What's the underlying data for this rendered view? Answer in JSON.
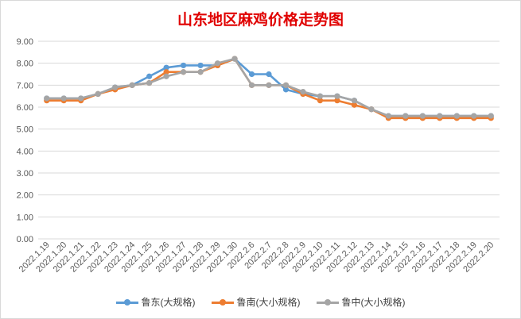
{
  "chart_data": {
    "type": "line",
    "title": "山东地区麻鸡价格走势图",
    "xlabel": "",
    "ylabel": "",
    "ylim": [
      0,
      9
    ],
    "yticks": [
      "0.00",
      "1.00",
      "2.00",
      "3.00",
      "4.00",
      "5.00",
      "6.00",
      "7.00",
      "8.00",
      "9.00"
    ],
    "grid": true,
    "legend_position": "bottom",
    "categories": [
      "2022.1.19",
      "2022.1.20",
      "2022.1.21",
      "2022.1.22",
      "2022.1.23",
      "2022.1.24",
      "2022.1.25",
      "2022.1.26",
      "2022.1.27",
      "2022.1.28",
      "2022.1.29",
      "2022.1.30",
      "2022.2.6",
      "2022.2.7",
      "2022.2.8",
      "2022.2.9",
      "2022.2.10",
      "2022.2.11",
      "2022.2.12",
      "2022.2.13",
      "2022.2.14",
      "2022.2.15",
      "2022.2.16",
      "2022.2.17",
      "2022.2.18",
      "2022.2.19",
      "2022.2.20"
    ],
    "series": [
      {
        "name": "鲁东(大规格)",
        "color": "#5b9bd5",
        "values": [
          6.4,
          6.4,
          6.4,
          6.6,
          6.9,
          7.0,
          7.4,
          7.8,
          7.9,
          7.9,
          7.9,
          8.2,
          7.5,
          7.5,
          6.8,
          6.6,
          6.5,
          6.5,
          6.3,
          5.9,
          5.6,
          5.6,
          5.6,
          5.6,
          5.6,
          5.6,
          5.6
        ]
      },
      {
        "name": "鲁南(大小规格)",
        "color": "#ed7d31",
        "values": [
          6.3,
          6.3,
          6.3,
          6.6,
          6.8,
          7.0,
          7.1,
          7.6,
          7.6,
          7.6,
          7.9,
          8.2,
          7.0,
          7.0,
          7.0,
          6.6,
          6.3,
          6.3,
          6.1,
          5.9,
          5.5,
          5.5,
          5.5,
          5.5,
          5.5,
          5.5,
          5.5
        ]
      },
      {
        "name": "鲁中(大小规格)",
        "color": "#a5a5a5",
        "values": [
          6.4,
          6.4,
          6.4,
          6.6,
          6.9,
          7.0,
          7.1,
          7.4,
          7.6,
          7.6,
          8.0,
          8.2,
          7.0,
          7.0,
          7.0,
          6.7,
          6.5,
          6.5,
          6.3,
          5.9,
          5.6,
          5.6,
          5.6,
          5.6,
          5.6,
          5.6,
          5.6
        ]
      }
    ]
  }
}
